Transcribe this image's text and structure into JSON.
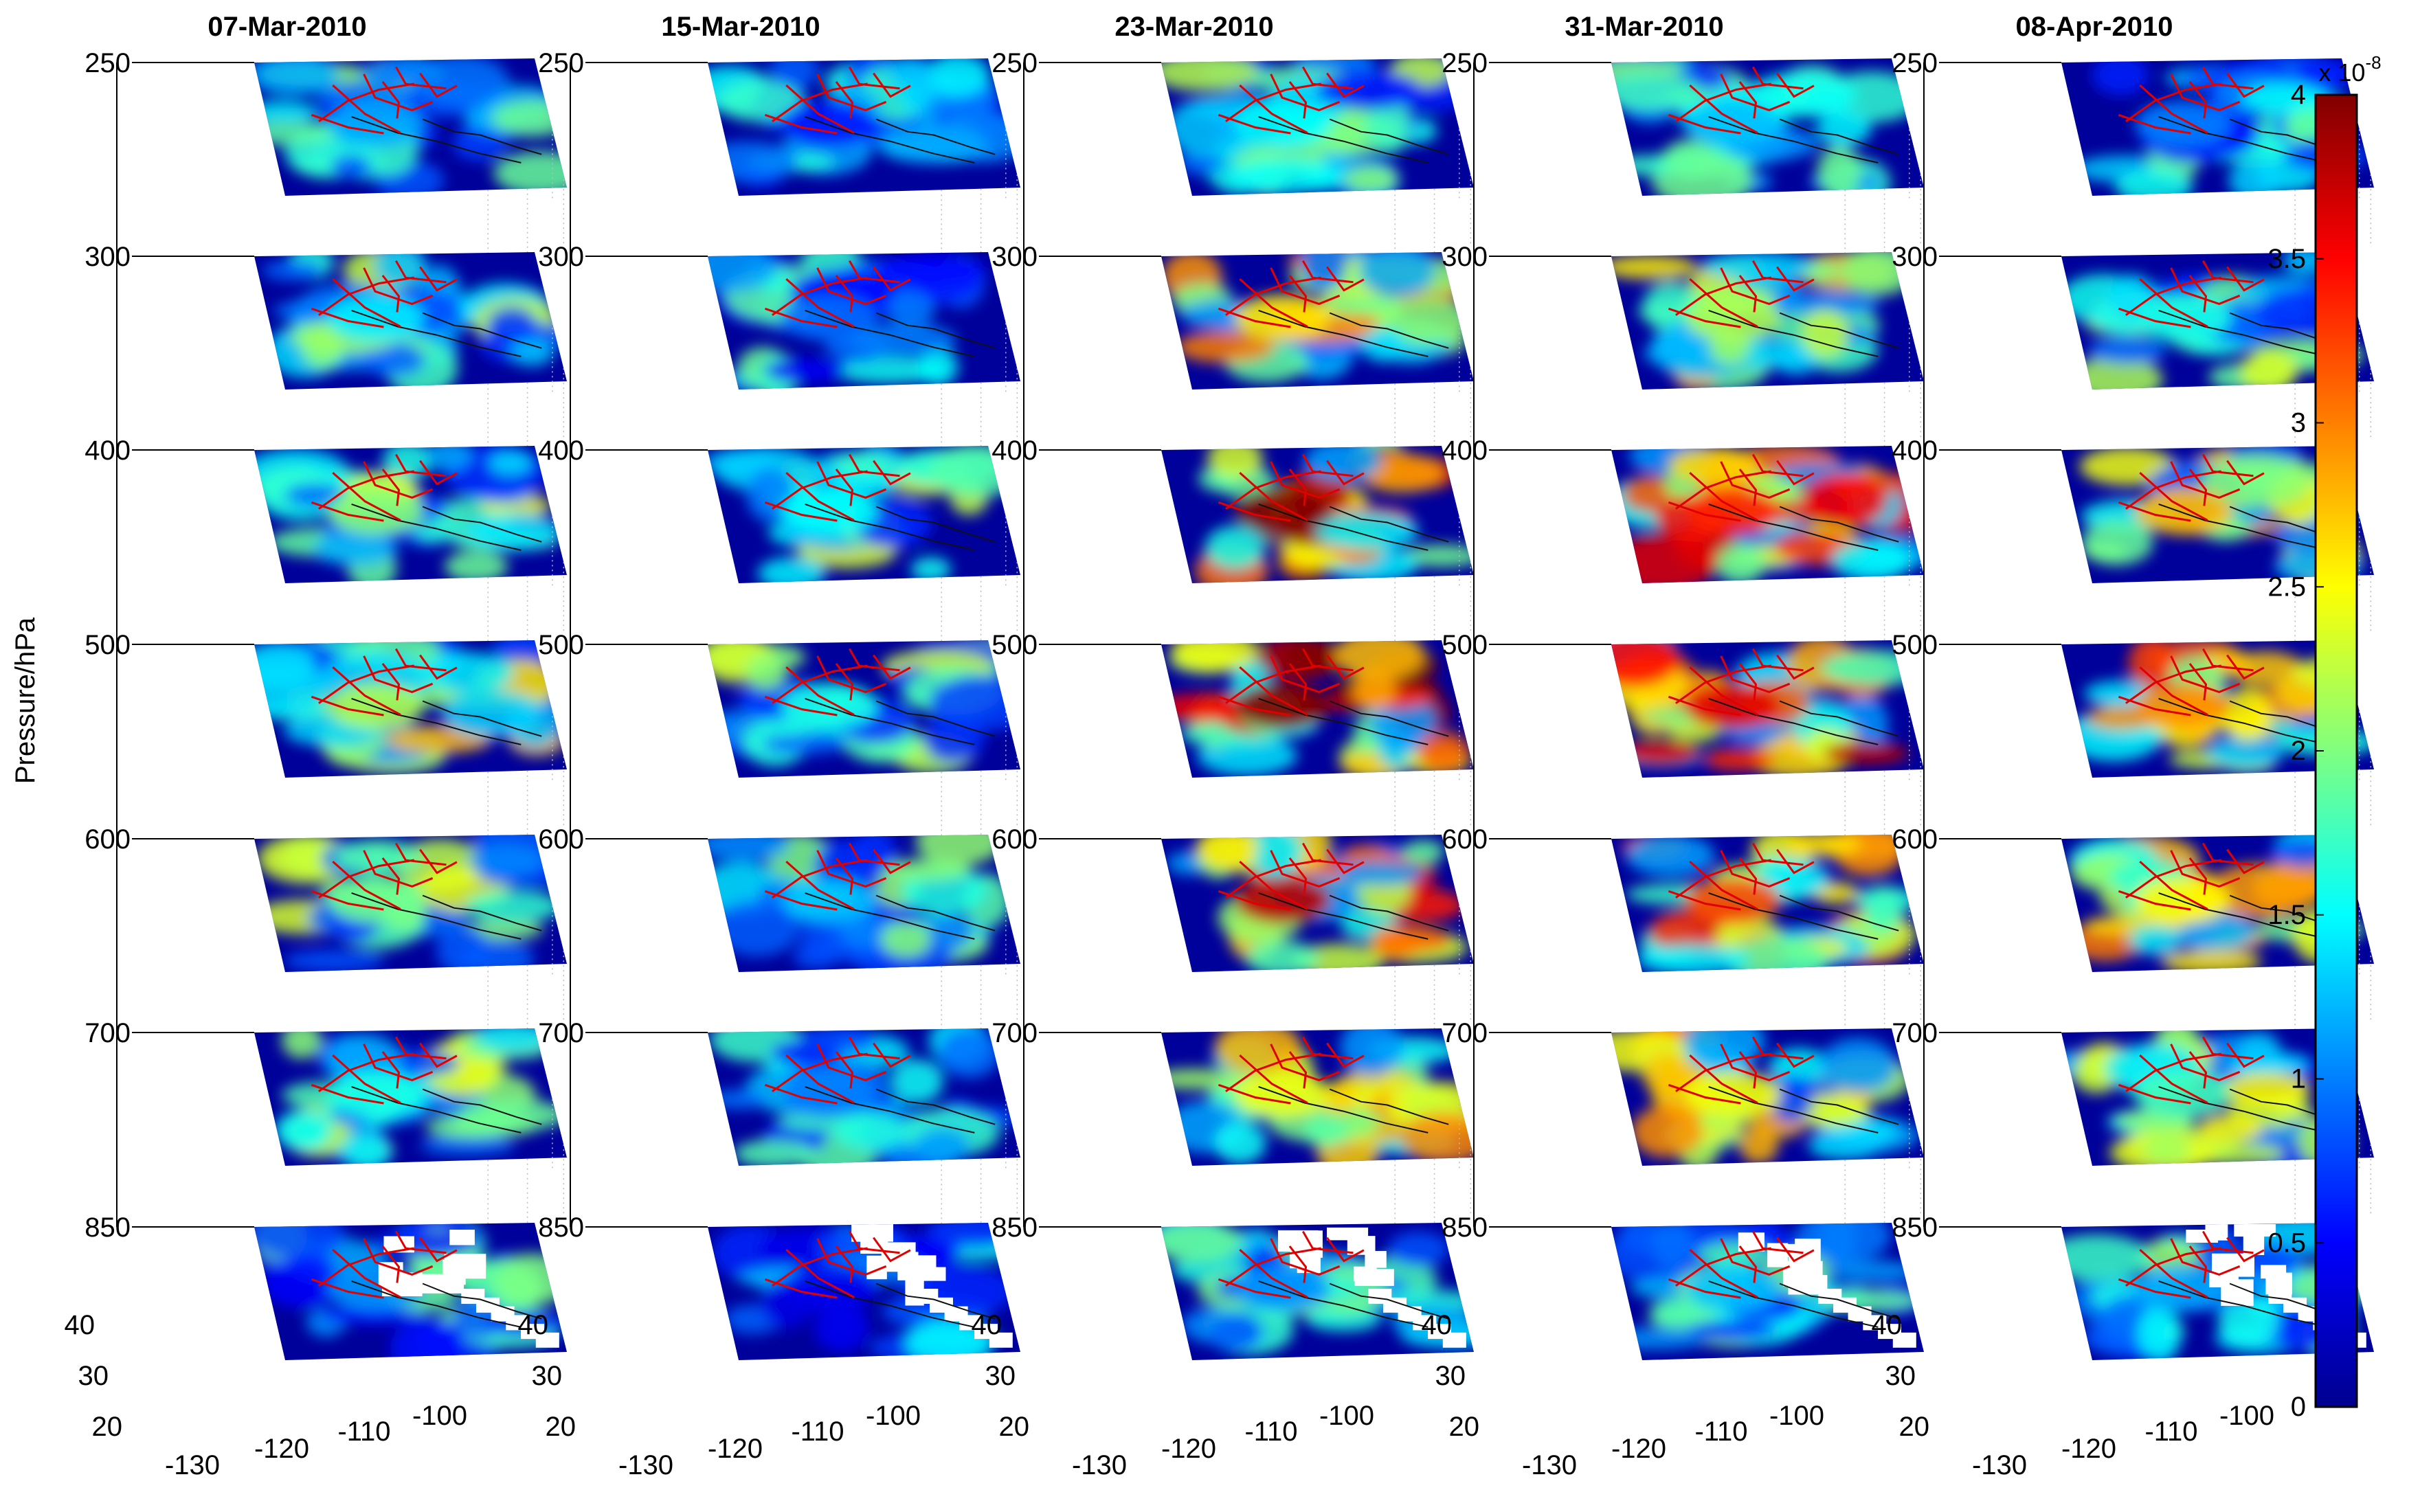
{
  "chart_data": {
    "type": "heatmap",
    "title": "",
    "ylabel": "Pressure/hPa",
    "panels": [
      {
        "date": "07-Mar-2010",
        "intensity": [
          0.28,
          0.34,
          0.48,
          0.52,
          0.46,
          0.38,
          0.26
        ]
      },
      {
        "date": "15-Mar-2010",
        "intensity": [
          0.14,
          0.22,
          0.36,
          0.38,
          0.3,
          0.24,
          0.1
        ]
      },
      {
        "date": "23-Mar-2010",
        "intensity": [
          0.36,
          0.62,
          0.95,
          1.0,
          0.9,
          0.58,
          0.26
        ]
      },
      {
        "date": "31-Mar-2010",
        "intensity": [
          0.3,
          0.52,
          0.8,
          0.86,
          0.76,
          0.58,
          0.3
        ]
      },
      {
        "date": "08-Apr-2010",
        "intensity": [
          0.24,
          0.38,
          0.66,
          0.7,
          0.6,
          0.42,
          0.28
        ]
      }
    ],
    "pressure_levels": [
      "250",
      "300",
      "400",
      "500",
      "600",
      "700",
      "850"
    ],
    "lat_ticks": [
      "40",
      "30",
      "20"
    ],
    "lon_ticks": [
      "-130",
      "-120",
      "-110",
      "-100"
    ],
    "colorbar": {
      "exponent_label": "x 10",
      "exponent_power": "-8",
      "range": [
        0,
        4
      ],
      "ticks": [
        "4",
        "3.5",
        "3",
        "2.5",
        "2",
        "1.5",
        "1",
        "0.5",
        "0"
      ],
      "colormap": "jet"
    },
    "colors": {
      "fault_lines": "#e00000",
      "coastline": "#111111",
      "missing_data": "#ffffff"
    }
  }
}
